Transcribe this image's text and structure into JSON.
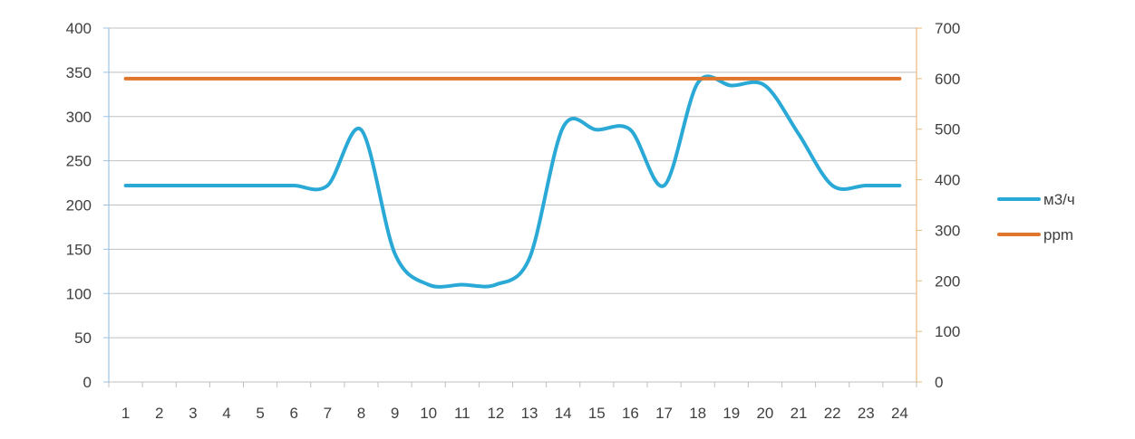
{
  "chart_data": {
    "type": "line",
    "title": "",
    "xlabel": "",
    "ylabel": "",
    "categories": [
      "1",
      "2",
      "3",
      "4",
      "5",
      "6",
      "7",
      "8",
      "9",
      "10",
      "11",
      "12",
      "13",
      "14",
      "15",
      "16",
      "17",
      "18",
      "19",
      "20",
      "21",
      "22",
      "23",
      "24"
    ],
    "y_left": {
      "ylim": [
        0,
        400
      ],
      "ticks": [
        "0",
        "50",
        "100",
        "150",
        "200",
        "250",
        "300",
        "350",
        "400"
      ]
    },
    "y_right": {
      "ylim": [
        0,
        700
      ],
      "ticks": [
        "0",
        "100",
        "200",
        "300",
        "400",
        "500",
        "600",
        "700"
      ]
    },
    "grid": true,
    "legend_position": "right",
    "series": [
      {
        "name": "м3/ч",
        "axis": "left",
        "color": "#2AA9D6",
        "values": [
          222,
          222,
          222,
          222,
          222,
          222,
          222,
          285,
          145,
          110,
          110,
          110,
          140,
          288,
          285,
          285,
          222,
          338,
          335,
          335,
          280,
          222,
          222,
          222
        ]
      },
      {
        "name": "ppm",
        "axis": "right",
        "color": "#E0762B",
        "values": [
          600,
          600,
          600,
          600,
          600,
          600,
          600,
          600,
          600,
          600,
          600,
          600,
          600,
          600,
          600,
          600,
          600,
          600,
          600,
          600,
          600,
          600,
          600,
          600
        ]
      }
    ],
    "colors": {
      "left_axis": "#9DC3E6",
      "right_axis": "#E8B87A",
      "grid": "#BFBFBF"
    }
  }
}
